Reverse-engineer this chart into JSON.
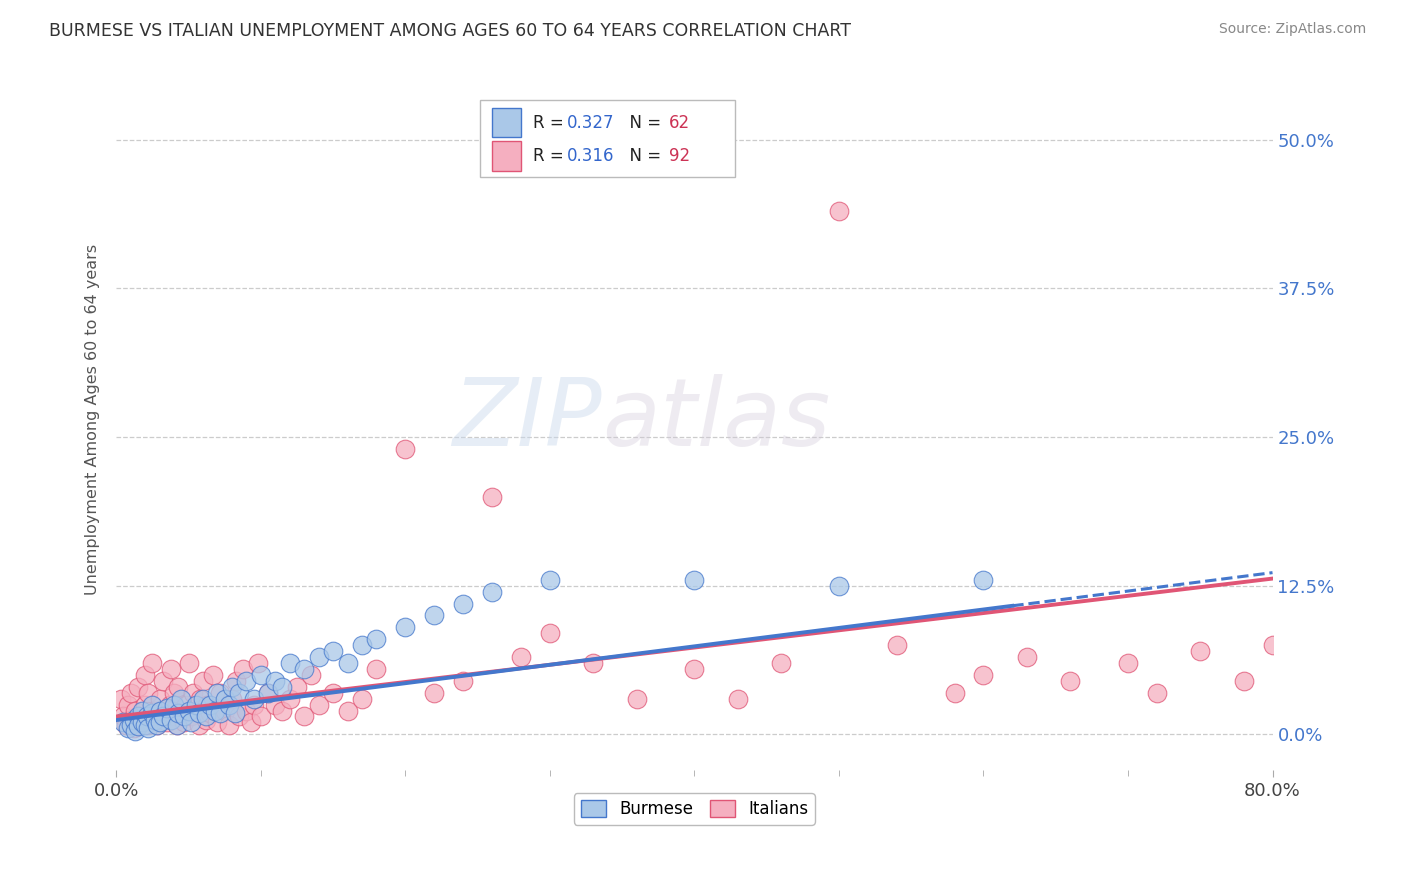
{
  "title": "BURMESE VS ITALIAN UNEMPLOYMENT AMONG AGES 60 TO 64 YEARS CORRELATION CHART",
  "source": "Source: ZipAtlas.com",
  "ylabel": "Unemployment Among Ages 60 to 64 years",
  "ytick_labels": [
    "0.0%",
    "12.5%",
    "25.0%",
    "37.5%",
    "50.0%"
  ],
  "ytick_values": [
    0.0,
    0.125,
    0.25,
    0.375,
    0.5
  ],
  "xmin": 0.0,
  "xmax": 0.8,
  "ymin": -0.03,
  "ymax": 0.56,
  "burmese_color": "#aac8e8",
  "italian_color": "#f5afc0",
  "burmese_line_color": "#4477cc",
  "italian_line_color": "#e05575",
  "burmese_R": 0.327,
  "burmese_N": 62,
  "italian_R": 0.316,
  "italian_N": 92,
  "legend_R_color": "#3366cc",
  "legend_N_color": "#cc3355",
  "watermark_zip": "ZIP",
  "watermark_atlas": "atlas",
  "background_color": "#ffffff",
  "burmese_scatter_x": [
    0.005,
    0.008,
    0.01,
    0.012,
    0.013,
    0.015,
    0.015,
    0.018,
    0.018,
    0.02,
    0.021,
    0.022,
    0.025,
    0.025,
    0.027,
    0.028,
    0.03,
    0.03,
    0.032,
    0.035,
    0.038,
    0.04,
    0.042,
    0.043,
    0.045,
    0.047,
    0.05,
    0.052,
    0.055,
    0.057,
    0.06,
    0.062,
    0.065,
    0.068,
    0.07,
    0.072,
    0.075,
    0.078,
    0.08,
    0.082,
    0.085,
    0.09,
    0.095,
    0.1,
    0.105,
    0.11,
    0.115,
    0.12,
    0.13,
    0.14,
    0.15,
    0.16,
    0.17,
    0.18,
    0.2,
    0.22,
    0.24,
    0.26,
    0.3,
    0.4,
    0.5,
    0.6
  ],
  "burmese_scatter_y": [
    0.01,
    0.005,
    0.008,
    0.012,
    0.003,
    0.015,
    0.007,
    0.01,
    0.02,
    0.008,
    0.015,
    0.005,
    0.018,
    0.025,
    0.012,
    0.008,
    0.02,
    0.01,
    0.015,
    0.022,
    0.012,
    0.025,
    0.008,
    0.018,
    0.03,
    0.015,
    0.02,
    0.01,
    0.025,
    0.018,
    0.03,
    0.015,
    0.025,
    0.02,
    0.035,
    0.018,
    0.03,
    0.025,
    0.04,
    0.018,
    0.035,
    0.045,
    0.03,
    0.05,
    0.035,
    0.045,
    0.04,
    0.06,
    0.055,
    0.065,
    0.07,
    0.06,
    0.075,
    0.08,
    0.09,
    0.1,
    0.11,
    0.12,
    0.13,
    0.13,
    0.125,
    0.13
  ],
  "italian_scatter_x": [
    0.003,
    0.005,
    0.007,
    0.008,
    0.01,
    0.01,
    0.012,
    0.013,
    0.015,
    0.015,
    0.017,
    0.018,
    0.02,
    0.02,
    0.022,
    0.022,
    0.025,
    0.025,
    0.027,
    0.028,
    0.03,
    0.03,
    0.032,
    0.033,
    0.035,
    0.037,
    0.038,
    0.04,
    0.04,
    0.042,
    0.043,
    0.045,
    0.047,
    0.048,
    0.05,
    0.052,
    0.053,
    0.055,
    0.057,
    0.058,
    0.06,
    0.062,
    0.063,
    0.065,
    0.067,
    0.07,
    0.072,
    0.075,
    0.078,
    0.08,
    0.083,
    0.085,
    0.088,
    0.09,
    0.093,
    0.095,
    0.098,
    0.1,
    0.105,
    0.11,
    0.115,
    0.12,
    0.125,
    0.13,
    0.135,
    0.14,
    0.15,
    0.16,
    0.17,
    0.18,
    0.2,
    0.22,
    0.24,
    0.26,
    0.28,
    0.3,
    0.33,
    0.36,
    0.4,
    0.43,
    0.46,
    0.5,
    0.54,
    0.58,
    0.6,
    0.63,
    0.66,
    0.7,
    0.72,
    0.75,
    0.78,
    0.8
  ],
  "italian_scatter_y": [
    0.03,
    0.015,
    0.008,
    0.025,
    0.012,
    0.035,
    0.005,
    0.02,
    0.008,
    0.04,
    0.015,
    0.01,
    0.025,
    0.05,
    0.008,
    0.035,
    0.015,
    0.06,
    0.02,
    0.008,
    0.03,
    0.012,
    0.045,
    0.018,
    0.01,
    0.025,
    0.055,
    0.015,
    0.035,
    0.008,
    0.04,
    0.018,
    0.01,
    0.025,
    0.06,
    0.015,
    0.035,
    0.02,
    0.008,
    0.03,
    0.045,
    0.012,
    0.025,
    0.018,
    0.05,
    0.01,
    0.035,
    0.02,
    0.008,
    0.03,
    0.045,
    0.015,
    0.055,
    0.02,
    0.01,
    0.025,
    0.06,
    0.015,
    0.035,
    0.025,
    0.02,
    0.03,
    0.04,
    0.015,
    0.05,
    0.025,
    0.035,
    0.02,
    0.03,
    0.055,
    0.24,
    0.035,
    0.045,
    0.2,
    0.065,
    0.085,
    0.06,
    0.03,
    0.055,
    0.03,
    0.06,
    0.44,
    0.075,
    0.035,
    0.05,
    0.065,
    0.045,
    0.06,
    0.035,
    0.07,
    0.045,
    0.075
  ]
}
